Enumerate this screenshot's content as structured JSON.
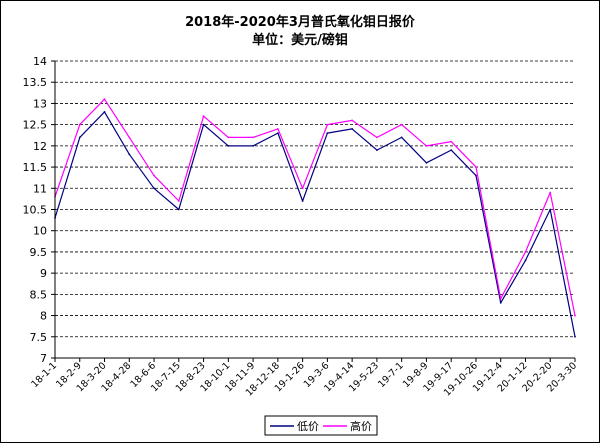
{
  "chart_data": {
    "type": "line",
    "title": "2018年-2020年3月普氏氧化钼日报价",
    "subtitle": "单位：美元/磅钼",
    "xlabel": "",
    "ylabel": "",
    "ylim": [
      7,
      14
    ],
    "yticks": [
      "7",
      "7.5",
      "8",
      "8.5",
      "9",
      "9.5",
      "10",
      "10.5",
      "11",
      "11.5",
      "12",
      "12.5",
      "13",
      "13.5",
      "14"
    ],
    "grid": true,
    "legend_position": "bottom-right",
    "x": [
      "18-1-1",
      "18-2-9",
      "18-3-20",
      "18-4-28",
      "18-6-6",
      "18-7-15",
      "18-8-23",
      "18-10-1",
      "18-11-9",
      "18-12-18",
      "19-1-26",
      "19-3-6",
      "19-4-14",
      "19-5-23",
      "19-7-1",
      "19-8-9",
      "19-9-17",
      "19-10-26",
      "19-12-4",
      "20-1-12",
      "20-2-20",
      "20-3-30"
    ],
    "series": [
      {
        "name": "低价",
        "color": "#000080",
        "values": [
          10.3,
          12.2,
          12.8,
          11.8,
          11.0,
          10.5,
          12.5,
          12.0,
          12.0,
          12.3,
          10.7,
          12.3,
          12.4,
          11.9,
          12.2,
          11.6,
          11.9,
          11.3,
          8.3,
          9.3,
          10.5,
          7.5
        ]
      },
      {
        "name": "高价",
        "color": "#ff00ff",
        "values": [
          10.8,
          12.5,
          13.1,
          12.2,
          11.3,
          10.7,
          12.7,
          12.2,
          12.2,
          12.4,
          11.0,
          12.5,
          12.6,
          12.2,
          12.5,
          12.0,
          12.1,
          11.5,
          8.4,
          9.5,
          10.9,
          8.0
        ]
      }
    ]
  }
}
